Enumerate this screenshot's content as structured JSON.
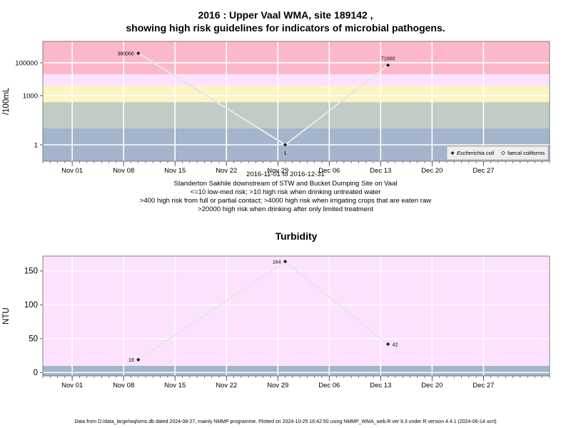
{
  "chart_title_line1": "2016 : Upper Vaal WMA, site 189142 ,",
  "chart_title_line2": "showing high risk guidelines for indicators of microbial pathogens.",
  "caption": {
    "date_range": "2016-11-01 to 2016-12-31",
    "site": "Standerton Sakhile downstream of STW and Bucket Dumping Site on Vaal",
    "line3": "<=10 low-med risk; >10 high risk when drinking untreated water",
    "line4": ">400 high risk from full or partial contact; >4000 high risk when irrigating crops that are eaten raw",
    "line5": ">20000 high risk when drinking after only limited treatment"
  },
  "footer": "Data from D:/data_large/wq/wms.db dated 2024-08-27, mainly NMMP programme. Plotted on 2024-10-25 16:42:50 using NMMP_WMA_web.R ver 9.3 under R version 4.4.1 (2024-06-14 ucrt)",
  "chart_data": [
    {
      "type": "line",
      "title": "",
      "ylabel": "/100mL",
      "yscale": "log10",
      "ylim": [
        0.1,
        2000000
      ],
      "x_range": [
        "2016-10-28",
        "2017-01-05"
      ],
      "x_ticks": [
        {
          "date": "2016-11-01",
          "label": "Nov 01"
        },
        {
          "date": "2016-11-08",
          "label": "Nov 08"
        },
        {
          "date": "2016-11-15",
          "label": "Nov 15"
        },
        {
          "date": "2016-11-22",
          "label": "Nov 22"
        },
        {
          "date": "2016-11-29",
          "label": "Nov 29"
        },
        {
          "date": "2016-12-06",
          "label": "Dec 06"
        },
        {
          "date": "2016-12-13",
          "label": "Dec 13"
        },
        {
          "date": "2016-12-20",
          "label": "Dec 20"
        },
        {
          "date": "2016-12-27",
          "label": "Dec 27"
        }
      ],
      "y_ticks": [
        {
          "value": 1,
          "label": "1"
        },
        {
          "value": 1000,
          "label": "1000"
        },
        {
          "value": 100000,
          "label": "100000"
        }
      ],
      "bands": [
        {
          "from": 0.1,
          "to": 10,
          "color": "#a4b4cc"
        },
        {
          "from": 10,
          "to": 400,
          "color": "#c2ccc4"
        },
        {
          "from": 400,
          "to": 4000,
          "color": "#fdf4c4"
        },
        {
          "from": 4000,
          "to": 20000,
          "color": "#fde2fd"
        },
        {
          "from": 20000,
          "to": 2000000,
          "color": "#fcb8c8"
        }
      ],
      "series": [
        {
          "name": "Escherichia coli",
          "color": "#e6e6e6",
          "marker": "filled-diamond",
          "points": [
            {
              "x": "2016-11-10",
              "y": 380000,
              "label": "380000"
            },
            {
              "x": "2016-11-30",
              "y": 1,
              "label": "1"
            },
            {
              "x": "2016-12-14",
              "y": 71000,
              "label": "71000"
            }
          ]
        }
      ],
      "legend": {
        "placement": "bottom-right",
        "entries": [
          "Escherichia coli",
          "faecal coliforms"
        ]
      }
    },
    {
      "type": "line",
      "title": "Turbidity",
      "ylabel": "NTU",
      "yscale": "linear",
      "ylim": [
        -5,
        172
      ],
      "x_range": [
        "2016-10-28",
        "2017-01-05"
      ],
      "x_ticks": [
        {
          "date": "2016-11-01",
          "label": "Nov 01"
        },
        {
          "date": "2016-11-08",
          "label": "Nov 08"
        },
        {
          "date": "2016-11-15",
          "label": "Nov 15"
        },
        {
          "date": "2016-11-22",
          "label": "Nov 22"
        },
        {
          "date": "2016-11-29",
          "label": "Nov 29"
        },
        {
          "date": "2016-12-06",
          "label": "Dec 06"
        },
        {
          "date": "2016-12-13",
          "label": "Dec 13"
        },
        {
          "date": "2016-12-20",
          "label": "Dec 20"
        },
        {
          "date": "2016-12-27",
          "label": "Dec 27"
        }
      ],
      "y_ticks": [
        {
          "value": 0,
          "label": "0"
        },
        {
          "value": 50,
          "label": "50"
        },
        {
          "value": 100,
          "label": "100"
        },
        {
          "value": 150,
          "label": "150"
        }
      ],
      "bands": [
        {
          "from": -5,
          "to": 10,
          "color": "#a4b4cc"
        },
        {
          "from": 10,
          "to": 172,
          "color": "#fde2fd"
        }
      ],
      "series": [
        {
          "color": "#e6e6e6",
          "marker": "filled-diamond",
          "points": [
            {
              "x": "2016-11-10",
              "y": 19,
              "label": "19"
            },
            {
              "x": "2016-11-30",
              "y": 164,
              "label": "164"
            },
            {
              "x": "2016-12-14",
              "y": 42,
              "label": "42"
            }
          ]
        }
      ]
    }
  ]
}
